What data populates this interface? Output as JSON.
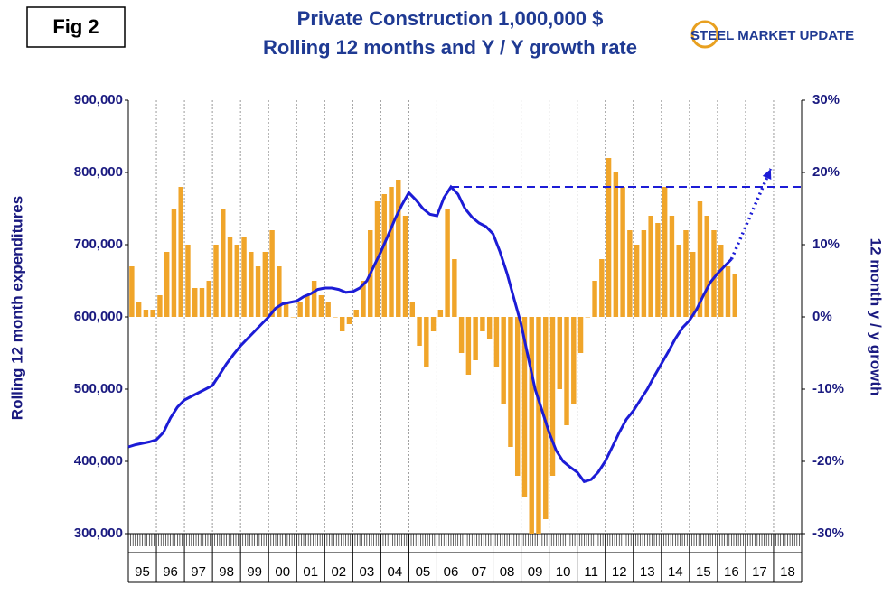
{
  "chart_data": {
    "type": "bar",
    "figure_label": "Fig 2",
    "title": "Private Construction 1,000,000 $",
    "subtitle": "Rolling 12 months and Y / Y growth rate",
    "logo": "STEEL MARKET UPDATE",
    "y_label": "Rolling 12 month expenditures",
    "y2_label": "12 month y / y growth",
    "xlim": [
      1995,
      2019
    ],
    "ylim": [
      300000,
      900000
    ],
    "y2lim": [
      -30,
      30
    ],
    "grid": true,
    "xticks": [
      {
        "value": 1995.5,
        "label": "95"
      },
      {
        "value": 1996.5,
        "label": "96"
      },
      {
        "value": 1997.5,
        "label": "97"
      },
      {
        "value": 1998.5,
        "label": "98"
      },
      {
        "value": 1999.5,
        "label": "99"
      },
      {
        "value": 2000.5,
        "label": "00"
      },
      {
        "value": 2001.5,
        "label": "01"
      },
      {
        "value": 2002.5,
        "label": "02"
      },
      {
        "value": 2003.5,
        "label": "03"
      },
      {
        "value": 2004.5,
        "label": "04"
      },
      {
        "value": 2005.5,
        "label": "05"
      },
      {
        "value": 2006.5,
        "label": "06"
      },
      {
        "value": 2007.5,
        "label": "07"
      },
      {
        "value": 2008.5,
        "label": "08"
      },
      {
        "value": 2009.5,
        "label": "09"
      },
      {
        "value": 2010.5,
        "label": "10"
      },
      {
        "value": 2011.5,
        "label": "11"
      },
      {
        "value": 2012.5,
        "label": "12"
      },
      {
        "value": 2013.5,
        "label": "13"
      },
      {
        "value": 2014.5,
        "label": "14"
      },
      {
        "value": 2015.5,
        "label": "15"
      },
      {
        "value": 2016.5,
        "label": "16"
      },
      {
        "value": 2017.5,
        "label": "17"
      },
      {
        "value": 2018.5,
        "label": "18"
      }
    ],
    "yticks": [
      {
        "value": 300000,
        "label": "300,000"
      },
      {
        "value": 400000,
        "label": "400,000"
      },
      {
        "value": 500000,
        "label": "500,000"
      },
      {
        "value": 600000,
        "label": "600,000"
      },
      {
        "value": 700000,
        "label": "700,000"
      },
      {
        "value": 800000,
        "label": "800,000"
      },
      {
        "value": 900000,
        "label": "900,000"
      }
    ],
    "y2ticks": [
      {
        "value": -30,
        "label": "-30%"
      },
      {
        "value": -20,
        "label": "-20%"
      },
      {
        "value": -10,
        "label": "-10%"
      },
      {
        "value": 0,
        "label": "0%"
      },
      {
        "value": 10,
        "label": "10%"
      },
      {
        "value": 20,
        "label": "20%"
      },
      {
        "value": 30,
        "label": "30%"
      }
    ],
    "x": [
      1995,
      1995.25,
      1995.5,
      1995.75,
      1996,
      1996.25,
      1996.5,
      1996.75,
      1997,
      1997.25,
      1997.5,
      1997.75,
      1998,
      1998.25,
      1998.5,
      1998.75,
      1999,
      1999.25,
      1999.5,
      1999.75,
      2000,
      2000.25,
      2000.5,
      2000.75,
      2001,
      2001.25,
      2001.5,
      2001.75,
      2002,
      2002.25,
      2002.5,
      2002.75,
      2003,
      2003.25,
      2003.5,
      2003.75,
      2004,
      2004.25,
      2004.5,
      2004.75,
      2005,
      2005.25,
      2005.5,
      2005.75,
      2006,
      2006.25,
      2006.5,
      2006.75,
      2007,
      2007.25,
      2007.5,
      2007.75,
      2008,
      2008.25,
      2008.5,
      2008.75,
      2009,
      2009.25,
      2009.5,
      2009.75,
      2010,
      2010.25,
      2010.5,
      2010.75,
      2011,
      2011.25,
      2011.5,
      2011.75,
      2012,
      2012.25,
      2012.5,
      2012.75,
      2013,
      2013.25,
      2013.5,
      2013.75,
      2014,
      2014.25,
      2014.5,
      2014.75,
      2015,
      2015.25,
      2015.5,
      2015.75,
      2016,
      2016.25,
      2016.5
    ],
    "series": [
      {
        "type": "line",
        "color": "#1c1cd6",
        "values": [
          420000,
          423000,
          425000,
          427000,
          430000,
          440000,
          460000,
          475000,
          485000,
          490000,
          495000,
          500000,
          505000,
          520000,
          535000,
          548000,
          560000,
          570000,
          580000,
          590000,
          600000,
          612000,
          618000,
          620000,
          622000,
          628000,
          632000,
          638000,
          640000,
          640000,
          638000,
          634000,
          635000,
          640000,
          650000,
          670000,
          690000,
          712000,
          735000,
          755000,
          772000,
          762000,
          750000,
          742000,
          740000,
          765000,
          780000,
          770000,
          750000,
          738000,
          730000,
          725000,
          715000,
          690000,
          660000,
          625000,
          590000,
          545000,
          500000,
          470000,
          440000,
          415000,
          400000,
          392000,
          385000,
          372000,
          375000,
          385000,
          400000,
          420000,
          440000,
          458000,
          470000,
          485000,
          500000,
          518000,
          535000,
          552000,
          570000,
          585000,
          595000,
          610000,
          630000,
          648000,
          660000,
          670000,
          680000
        ]
      },
      {
        "type": "bar",
        "axis": "y2",
        "color": "#f0a52a",
        "values": [
          7,
          2,
          1,
          1,
          3,
          9,
          15,
          18,
          10,
          4,
          4,
          5,
          10,
          15,
          11,
          10,
          11,
          9,
          7,
          9,
          12,
          7,
          2,
          0,
          2,
          3,
          5,
          3,
          2,
          0,
          -2,
          -1,
          1,
          5,
          12,
          16,
          17,
          18,
          19,
          14,
          2,
          -4,
          -7,
          -2,
          1,
          15,
          8,
          -5,
          -8,
          -6,
          -2,
          -3,
          -7,
          -12,
          -18,
          -22,
          -25,
          -30,
          -30,
          -28,
          -22,
          -10,
          -15,
          -12,
          -5,
          0,
          5,
          8,
          22,
          20,
          18,
          12,
          10,
          12,
          14,
          13,
          18,
          14,
          10,
          12,
          9,
          16,
          14,
          12,
          10,
          7,
          6
        ]
      }
    ],
    "reference_line": {
      "x": [
        2006.5,
        2019
      ],
      "value": 780000,
      "color": "#1c1cd6"
    },
    "projection": {
      "x": [
        2016.5,
        2017.9
      ],
      "values": [
        680000,
        805000
      ],
      "color": "#1c1cd6"
    }
  }
}
